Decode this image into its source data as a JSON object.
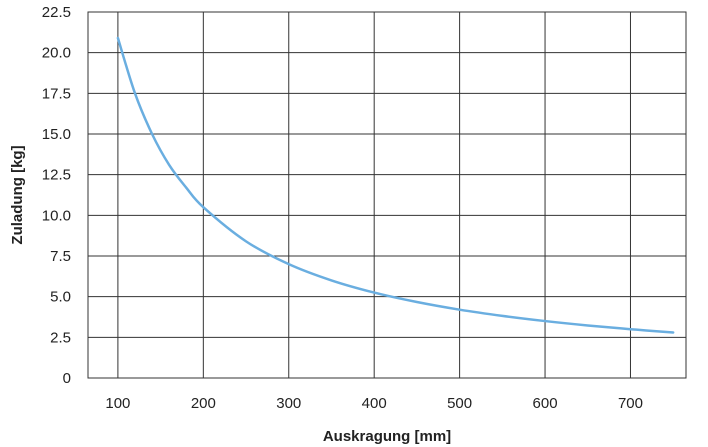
{
  "chart_data": {
    "type": "line",
    "xlabel": "Auskragung [mm]",
    "ylabel": "Zuladung [kg]",
    "xlim": [
      65,
      765
    ],
    "ylim": [
      0,
      22.5
    ],
    "x_ticks": [
      100,
      200,
      300,
      400,
      500,
      600,
      700
    ],
    "x_tick_labels": [
      "100",
      "200",
      "300",
      "400",
      "500",
      "600",
      "700"
    ],
    "y_ticks": [
      0,
      2.5,
      5.0,
      7.5,
      10.0,
      12.5,
      15.0,
      17.5,
      20.0,
      22.5
    ],
    "y_tick_labels": [
      "0",
      "2.5",
      "5.0",
      "7.5",
      "10.0",
      "12.5",
      "15.0",
      "17.5",
      "20.0",
      "22.5"
    ],
    "grid": true,
    "legend": "none",
    "series": [
      {
        "color": "#6aaee0",
        "x": [
          100,
          120,
          140,
          160,
          180,
          200,
          250,
          300,
          350,
          400,
          450,
          500,
          550,
          600,
          650,
          700,
          750
        ],
        "y": [
          20.9,
          17.5,
          15.0,
          13.1,
          11.7,
          10.5,
          8.4,
          7.0,
          6.0,
          5.25,
          4.67,
          4.2,
          3.82,
          3.5,
          3.23,
          3.0,
          2.8
        ]
      }
    ]
  }
}
